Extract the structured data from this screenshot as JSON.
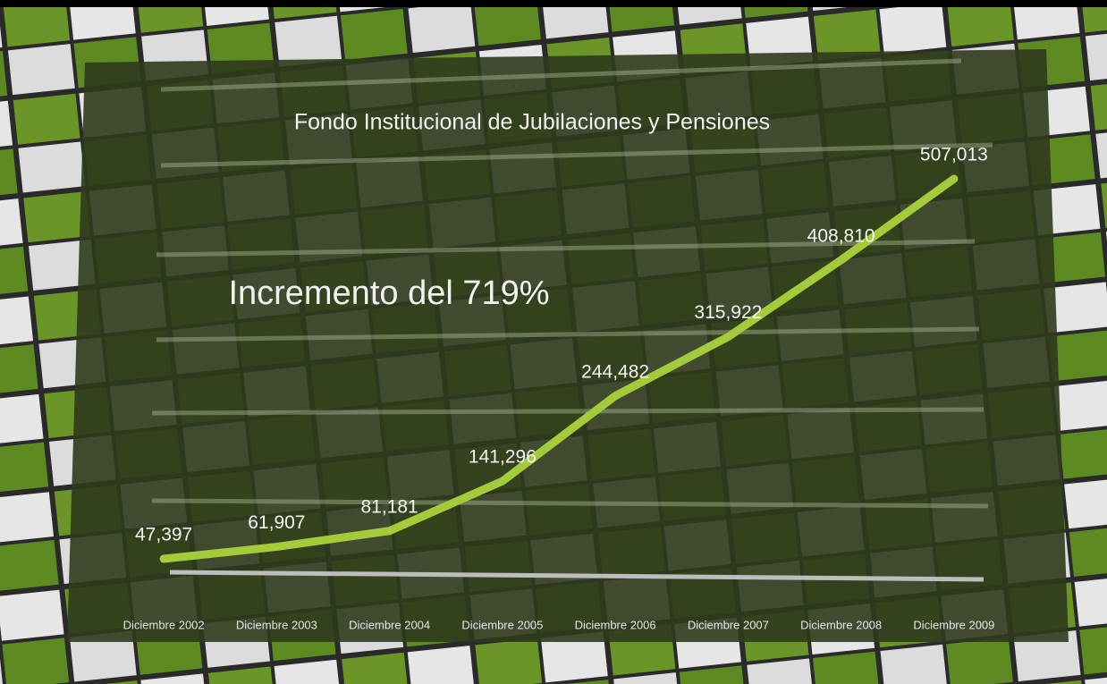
{
  "chart_data": {
    "type": "line",
    "title": "Fondo Institucional de Jubilaciones y Pensiones",
    "annotation": "Incremento del 719%",
    "categories": [
      "Diciembre 2002",
      "Diciembre 2003",
      "Diciembre 2004",
      "Diciembre 2005",
      "Diciembre 2006",
      "Diciembre 2007",
      "Diciembre 2008",
      "Diciembre 2009"
    ],
    "values": [
      47397,
      61907,
      81181,
      141296,
      244482,
      315922,
      408810,
      507013
    ],
    "value_labels": [
      "47,397",
      "61,907",
      "81,181",
      "141,296",
      "244,482",
      "315,922",
      "408,810",
      "507,013"
    ],
    "color": "#a4cc3a"
  }
}
